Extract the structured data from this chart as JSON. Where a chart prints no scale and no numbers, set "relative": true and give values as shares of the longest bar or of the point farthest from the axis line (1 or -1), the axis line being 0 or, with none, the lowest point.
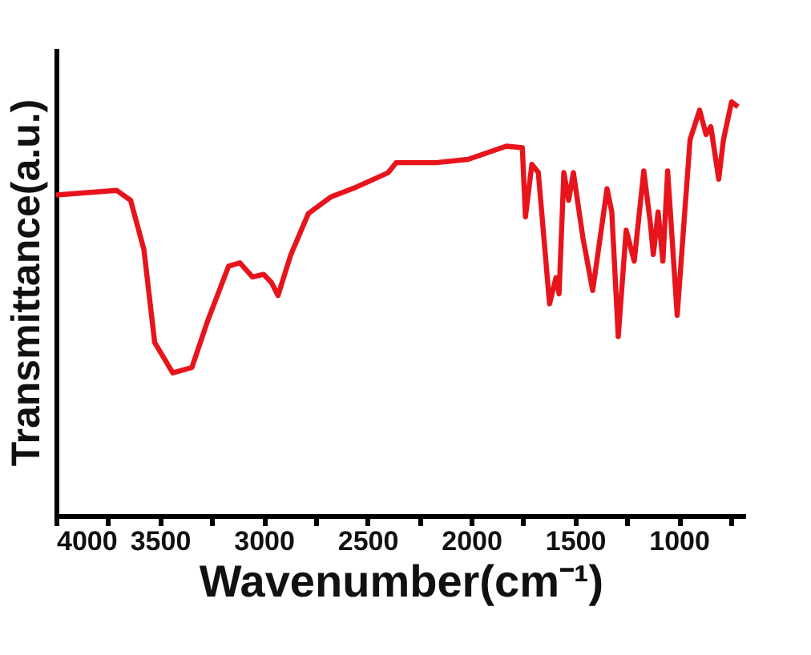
{
  "chart_data": {
    "type": "line",
    "relative": true,
    "xlabel": "Wavenumber(cm⁻¹)",
    "ylabel": "Transmittance(a.u.)",
    "xlim": [
      4000,
      680
    ],
    "xticks": [
      4000,
      {
        "value": 3750,
        "label": null
      },
      3500,
      {
        "value": 3250,
        "label": null
      },
      3000,
      {
        "value": 2750,
        "label": null
      },
      2500,
      {
        "value": 2250,
        "label": null
      },
      2000,
      {
        "value": 1750,
        "label": null
      },
      1500,
      {
        "value": 1250,
        "label": null
      },
      1000,
      {
        "value": 750,
        "label": null
      }
    ],
    "tick_labels": "x",
    "grid": false,
    "marker": "none",
    "line_style": "solid",
    "x": [
      4000,
      3708,
      3641,
      3577,
      3525,
      3438,
      3346,
      3269,
      3169,
      3115,
      3054,
      3000,
      2962,
      2931,
      2869,
      2785,
      2677,
      2554,
      2400,
      2362,
      2346,
      2169,
      2015,
      1831,
      1754,
      1739,
      1708,
      1677,
      1623,
      1592,
      1577,
      1554,
      1531,
      1508,
      1462,
      1415,
      1346,
      1323,
      1292,
      1254,
      1215,
      1169,
      1138,
      1123,
      1100,
      1077,
      1054,
      1008,
      946,
      900,
      869,
      846,
      808,
      785,
      746,
      715
    ],
    "series": [
      {
        "color": "#e8141c",
        "values": [
          0.775,
          0.786,
          0.762,
          0.643,
          0.418,
          0.345,
          0.358,
          0.472,
          0.603,
          0.611,
          0.577,
          0.583,
          0.563,
          0.532,
          0.631,
          0.73,
          0.77,
          0.794,
          0.829,
          0.853,
          0.853,
          0.853,
          0.861,
          0.893,
          0.889,
          0.722,
          0.849,
          0.829,
          0.512,
          0.575,
          0.536,
          0.829,
          0.762,
          0.829,
          0.671,
          0.544,
          0.79,
          0.734,
          0.433,
          0.69,
          0.615,
          0.833,
          0.71,
          0.631,
          0.734,
          0.615,
          0.833,
          0.484,
          0.909,
          0.98,
          0.921,
          0.94,
          0.813,
          0.909,
          1.0,
          0.988
        ]
      }
    ]
  }
}
